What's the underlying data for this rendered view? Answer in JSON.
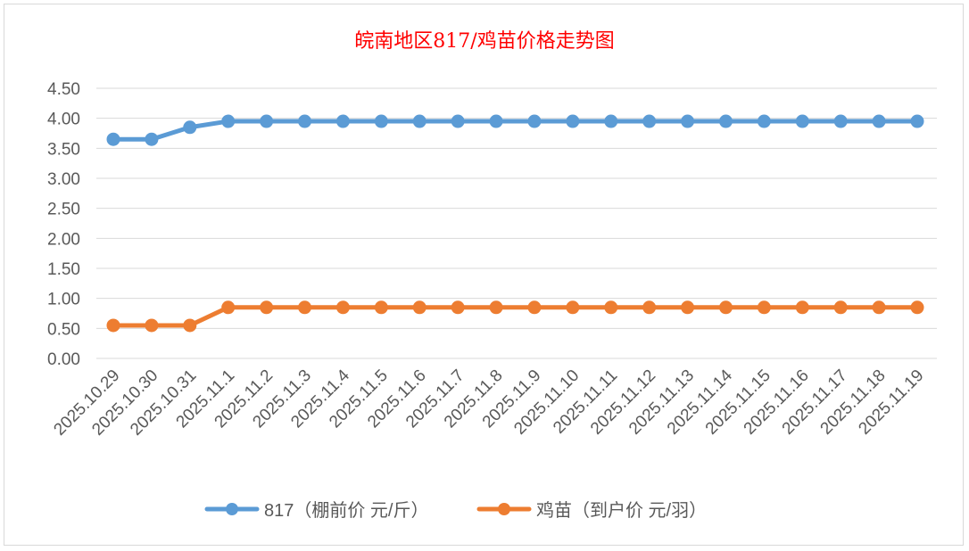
{
  "chart_data": {
    "type": "line",
    "title": "皖南地区817/鸡苗价格走势图",
    "categories": [
      "2025.10.29",
      "2025.10.30",
      "2025.10.31",
      "2025.11.1",
      "2025.11.2",
      "2025.11.3",
      "2025.11.4",
      "2025.11.5",
      "2025.11.6",
      "2025.11.7",
      "2025.11.8",
      "2025.11.9",
      "2025.11.10",
      "2025.11.11",
      "2025.11.12",
      "2025.11.13",
      "2025.11.14",
      "2025.11.15",
      "2025.11.16",
      "2025.11.17",
      "2025.11.18",
      "2025.11.19"
    ],
    "series": [
      {
        "name": "817（棚前价 元/斤）",
        "color": "#5b9bd5",
        "values": [
          3.65,
          3.65,
          3.85,
          3.95,
          3.95,
          3.95,
          3.95,
          3.95,
          3.95,
          3.95,
          3.95,
          3.95,
          3.95,
          3.95,
          3.95,
          3.95,
          3.95,
          3.95,
          3.95,
          3.95,
          3.95,
          3.95
        ]
      },
      {
        "name": "鸡苗（到户价 元/羽）",
        "color": "#ed7d31",
        "values": [
          0.55,
          0.55,
          0.55,
          0.85,
          0.85,
          0.85,
          0.85,
          0.85,
          0.85,
          0.85,
          0.85,
          0.85,
          0.85,
          0.85,
          0.85,
          0.85,
          0.85,
          0.85,
          0.85,
          0.85,
          0.85,
          0.85
        ]
      }
    ],
    "yticks": [
      "0.00",
      "0.50",
      "1.00",
      "1.50",
      "2.00",
      "2.50",
      "3.00",
      "3.50",
      "4.00",
      "4.50"
    ],
    "ylim": [
      0,
      4.5
    ],
    "grid": true,
    "legend": "bottom",
    "xlabel": "",
    "ylabel": ""
  }
}
